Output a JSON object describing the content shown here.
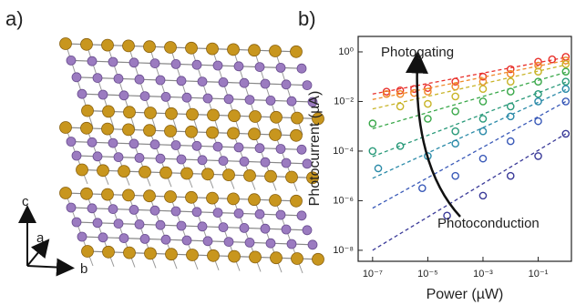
{
  "panel_labels": [
    "a)",
    "b)"
  ],
  "structure_axes": {
    "c": "c",
    "a": "a",
    "b": "b"
  },
  "chart_data": {
    "type": "scatter",
    "x_label": "Power (µW)",
    "y_label": "Photocurrent (µA)",
    "annotations": [
      "Photogating",
      "Photoconduction"
    ],
    "xlog": true,
    "ylog": true,
    "xlim": [
      3e-08,
      1.6
    ],
    "ylim": [
      3.6e-09,
      4.2
    ],
    "xticks": [
      {
        "value": 1e-07,
        "label": "10⁻⁷"
      },
      {
        "value": 1e-05,
        "label": "10⁻⁵"
      },
      {
        "value": 0.001,
        "label": "10⁻³"
      },
      {
        "value": 0.1,
        "label": "10⁻¹"
      }
    ],
    "yticks": [
      {
        "value": 1,
        "label": "10⁰"
      },
      {
        "value": 0.01,
        "label": "10⁻²"
      },
      {
        "value": 0.0001,
        "label": "10⁻⁴"
      },
      {
        "value": 1e-06,
        "label": "10⁻⁶"
      },
      {
        "value": 1e-08,
        "label": "10⁻⁸"
      }
    ],
    "series": [
      {
        "color": "#e8302a",
        "x": [
          3.2e-07,
          1e-06,
          3.2e-06,
          1e-05,
          0.0001,
          0.001,
          0.01,
          0.1,
          0.32,
          1
        ],
        "values": [
          0.025,
          0.028,
          0.032,
          0.035,
          0.063,
          0.1,
          0.2,
          0.4,
          0.5,
          0.63
        ],
        "fit_x": [
          1e-07,
          1
        ],
        "fit_values": [
          0.02,
          0.6
        ]
      },
      {
        "color": "#f08a2a",
        "x": [
          3.2e-07,
          1e-06,
          3.2e-06,
          1e-05,
          0.0001,
          0.001,
          0.01,
          0.1,
          1
        ],
        "values": [
          0.02,
          0.02,
          0.022,
          0.025,
          0.04,
          0.063,
          0.13,
          0.28,
          0.45
        ],
        "fit_x": [
          1e-07,
          1
        ],
        "fit_values": [
          0.012,
          0.45
        ]
      },
      {
        "color": "#c8b428",
        "x": [
          1e-06,
          1e-05,
          0.0001,
          0.001,
          0.01,
          0.1,
          1
        ],
        "values": [
          0.0063,
          0.008,
          0.016,
          0.032,
          0.063,
          0.16,
          0.32
        ],
        "fit_x": [
          1e-07,
          1
        ],
        "fit_values": [
          0.005,
          0.3
        ]
      },
      {
        "color": "#3aa84a",
        "x": [
          1e-07,
          1e-05,
          0.0001,
          0.001,
          0.01,
          0.1,
          1
        ],
        "values": [
          0.0013,
          0.002,
          0.004,
          0.01,
          0.025,
          0.063,
          0.16
        ],
        "fit_x": [
          1e-07,
          1
        ],
        "fit_values": [
          0.0008,
          0.15
        ]
      },
      {
        "color": "#2a9a7a",
        "x": [
          1e-07,
          1e-06,
          0.0001,
          0.001,
          0.01,
          0.1,
          1
        ],
        "values": [
          0.0001,
          0.00016,
          0.00063,
          0.002,
          0.0063,
          0.02,
          0.063
        ],
        "fit_x": [
          1e-07,
          1
        ],
        "fit_values": [
          6e-05,
          0.06
        ]
      },
      {
        "color": "#2a8aa8",
        "x": [
          1.6e-07,
          1e-05,
          0.0001,
          0.001,
          0.01,
          0.1,
          1
        ],
        "values": [
          2e-05,
          6.3e-05,
          0.0002,
          0.00063,
          0.0025,
          0.01,
          0.032
        ],
        "fit_x": [
          1e-07,
          1
        ],
        "fit_values": [
          8e-06,
          0.03
        ]
      },
      {
        "color": "#3a5ab8",
        "x": [
          6.3e-06,
          0.0001,
          0.001,
          0.01,
          0.1,
          1
        ],
        "values": [
          3.2e-06,
          1e-05,
          5e-05,
          0.00025,
          0.0016,
          0.01
        ],
        "fit_x": [
          1e-07,
          1
        ],
        "fit_values": [
          5e-07,
          0.01
        ]
      },
      {
        "color": "#3a3a98",
        "x": [
          5e-05,
          0.001,
          0.01,
          0.1,
          1
        ],
        "values": [
          2.5e-07,
          1.6e-06,
          1e-05,
          6.3e-05,
          0.0005
        ],
        "fit_x": [
          1e-07,
          1
        ],
        "fit_values": [
          1e-08,
          0.0005
        ]
      }
    ]
  }
}
